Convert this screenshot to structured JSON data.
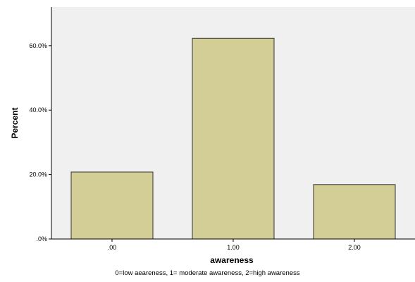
{
  "chart_data": {
    "type": "bar",
    "categories": [
      ".00",
      "1.00",
      "2.00"
    ],
    "values": [
      20.8,
      62.3,
      16.9
    ],
    "xlabel": "awareness",
    "ylabel": "Percent",
    "ylim": [
      0,
      72
    ],
    "yticks": [
      0,
      20,
      40,
      60
    ],
    "ytick_labels": [
      ".0%",
      "20.0%",
      "40.0%",
      "60.0%"
    ],
    "grid": false,
    "colors": {
      "bar_fill": "#d3cd96",
      "bar_stroke": "#333333",
      "plot_background": "#f0f0f0",
      "axis": "#000000"
    }
  },
  "caption": "0=low aeareness, 1= moderate awareness, 2=high awareness"
}
